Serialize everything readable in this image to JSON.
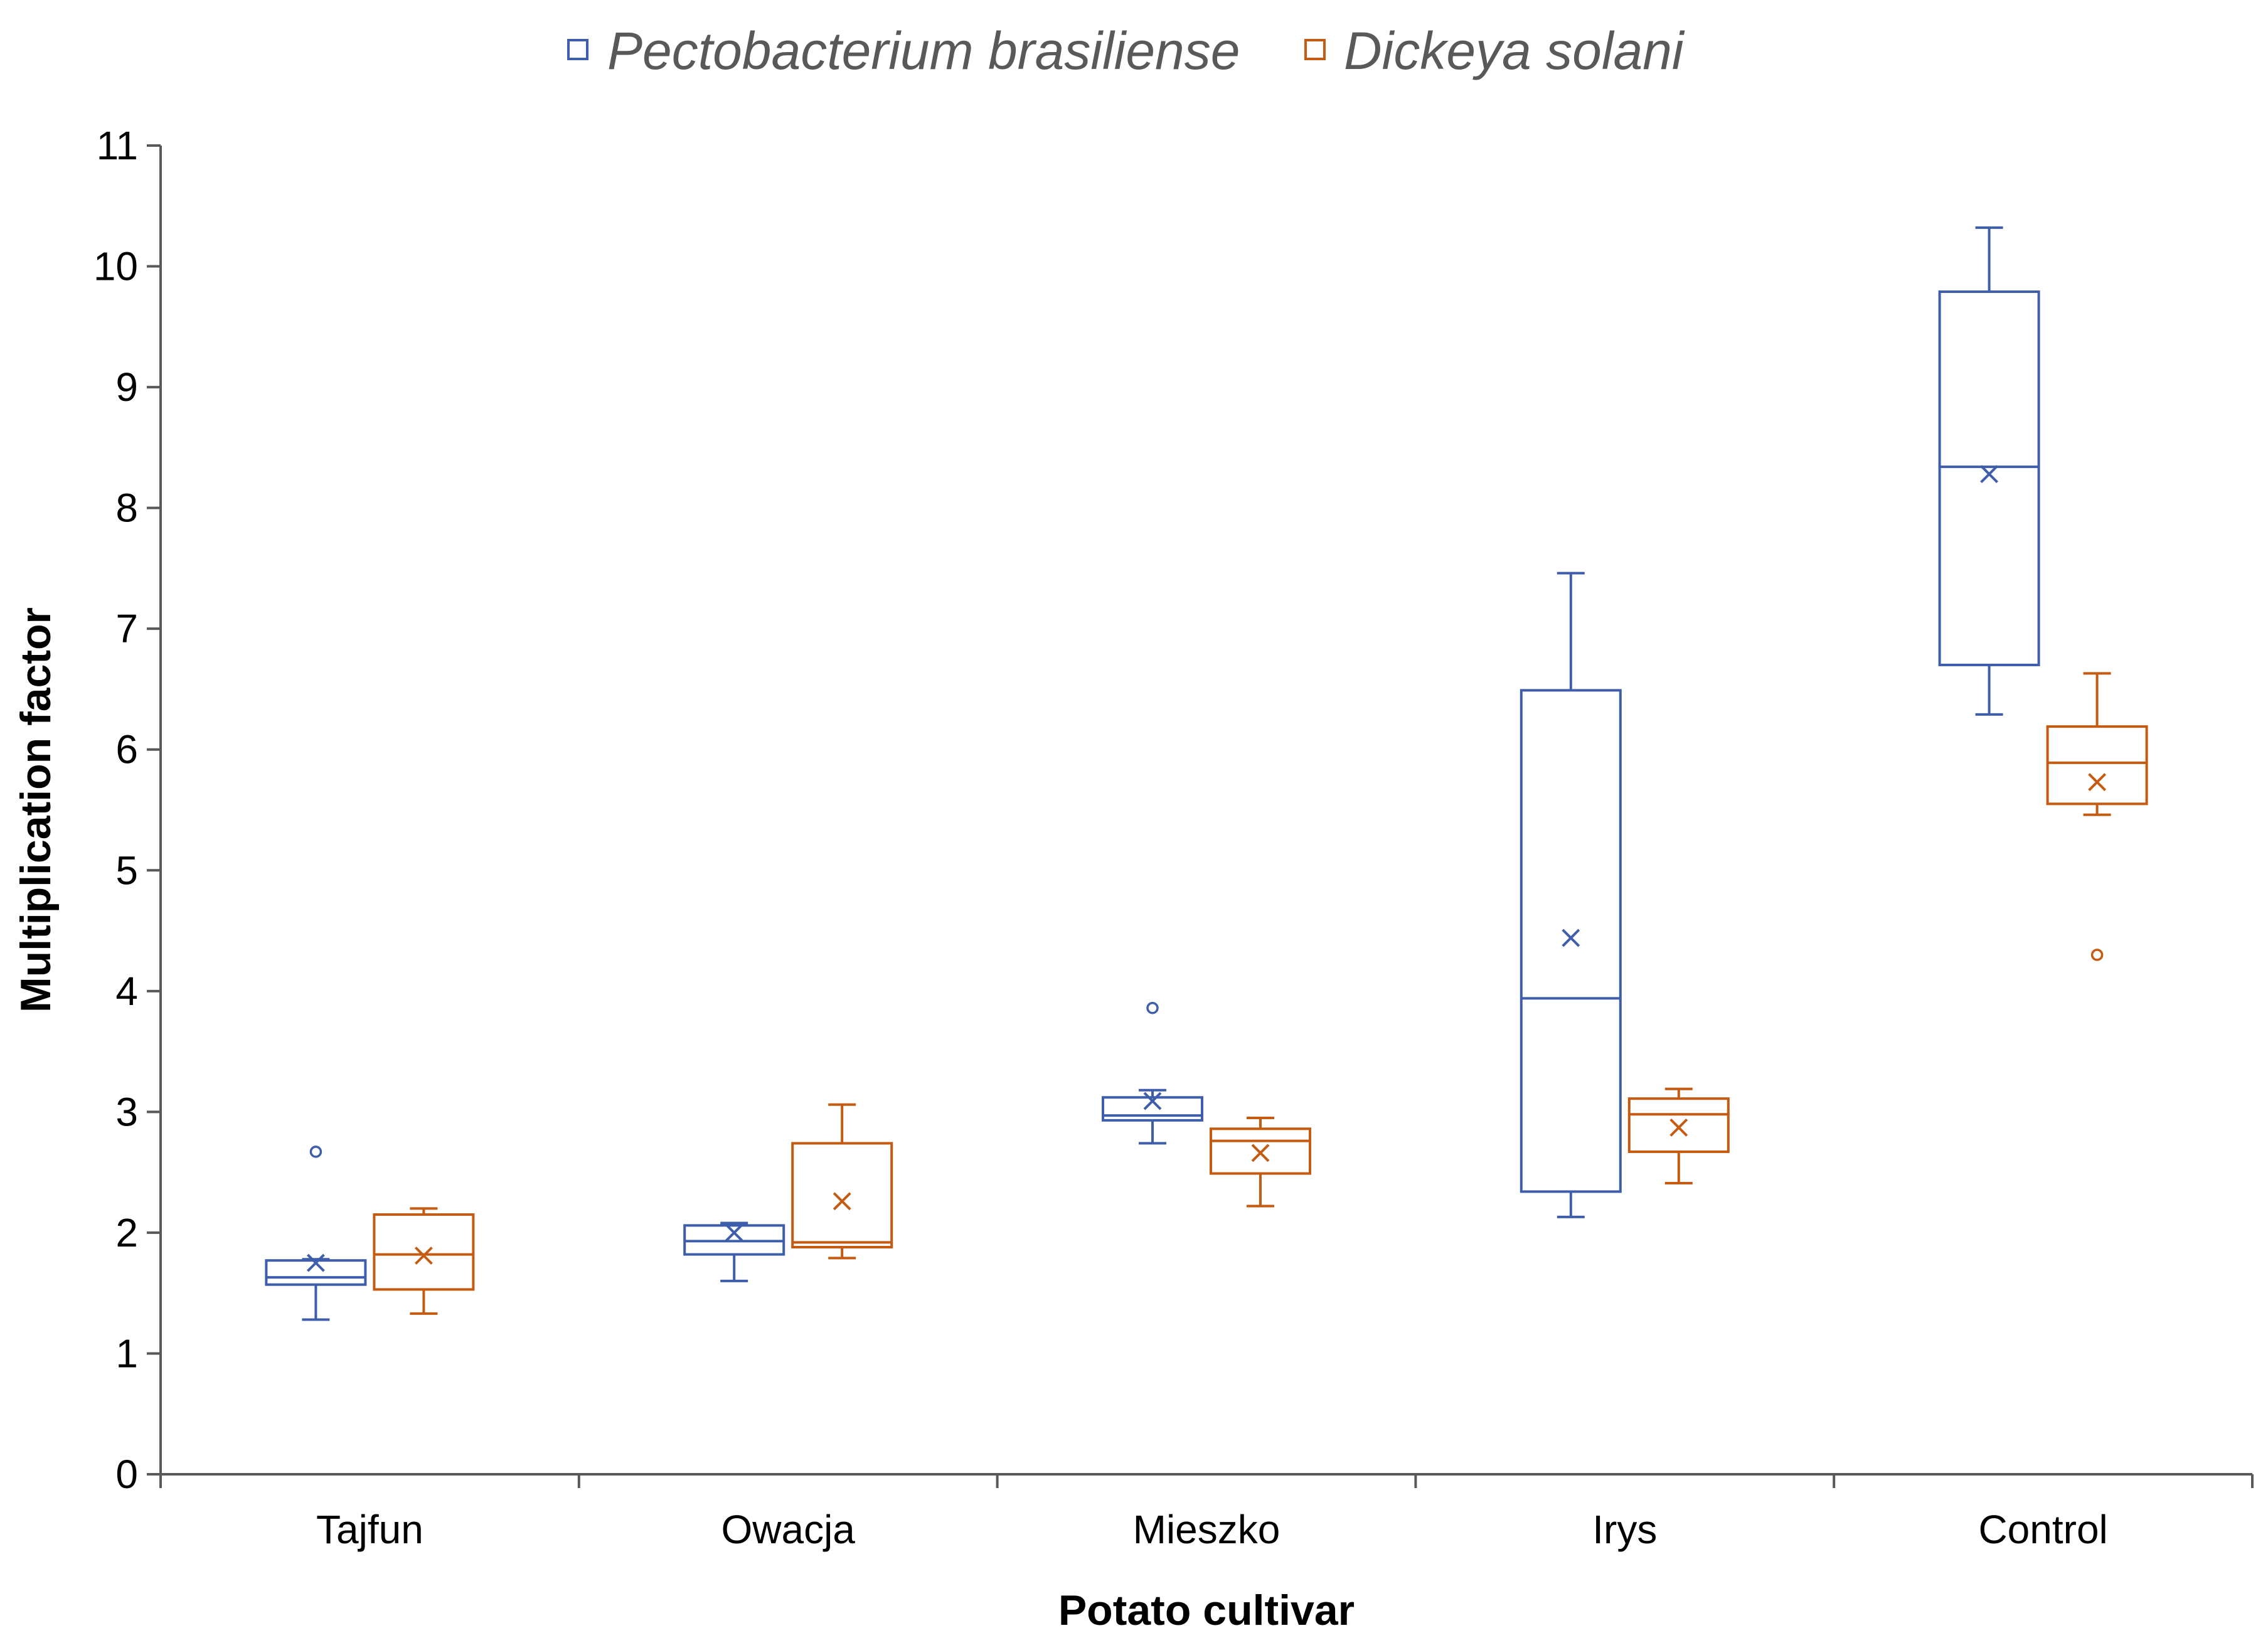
{
  "chart_data": {
    "type": "box",
    "title": "",
    "xlabel": "Potato cultivar",
    "ylabel": "Multiplication factor",
    "ylim": [
      0,
      11
    ],
    "yticks": [
      0,
      1,
      2,
      3,
      4,
      5,
      6,
      7,
      8,
      9,
      10,
      11
    ],
    "categories": [
      "Tajfun",
      "Owacja",
      "Mieszko",
      "Irys",
      "Control"
    ],
    "legend_position": "top-center",
    "series": [
      {
        "name": "Pectobacterium brasiliense",
        "color": "#3E5DAA",
        "boxes": [
          {
            "category": "Tajfun",
            "whisker_low": 1.28,
            "q1": 1.57,
            "median": 1.63,
            "q3": 1.77,
            "whisker_high": 1.78,
            "mean": 1.75,
            "outliers": [
              2.67
            ]
          },
          {
            "category": "Owacja",
            "whisker_low": 1.6,
            "q1": 1.82,
            "median": 1.93,
            "q3": 2.06,
            "whisker_high": 2.08,
            "mean": 2.0,
            "outliers": []
          },
          {
            "category": "Mieszko",
            "whisker_low": 2.74,
            "q1": 2.93,
            "median": 2.97,
            "q3": 3.12,
            "whisker_high": 3.18,
            "mean": 3.09,
            "outliers": [
              3.86
            ]
          },
          {
            "category": "Irys",
            "whisker_low": 2.13,
            "q1": 2.34,
            "median": 3.94,
            "q3": 6.49,
            "whisker_high": 7.46,
            "mean": 4.44,
            "outliers": []
          },
          {
            "category": "Control",
            "whisker_low": 6.29,
            "q1": 6.7,
            "median": 8.34,
            "q3": 9.79,
            "whisker_high": 10.32,
            "mean": 8.28,
            "outliers": []
          }
        ]
      },
      {
        "name": "Dickeya solani",
        "color": "#C55A11",
        "boxes": [
          {
            "category": "Tajfun",
            "whisker_low": 1.33,
            "q1": 1.53,
            "median": 1.82,
            "q3": 2.15,
            "whisker_high": 2.2,
            "mean": 1.81,
            "outliers": []
          },
          {
            "category": "Owacja",
            "whisker_low": 1.79,
            "q1": 1.88,
            "median": 1.92,
            "q3": 2.74,
            "whisker_high": 3.06,
            "mean": 2.26,
            "outliers": []
          },
          {
            "category": "Mieszko",
            "whisker_low": 2.22,
            "q1": 2.49,
            "median": 2.76,
            "q3": 2.86,
            "whisker_high": 2.95,
            "mean": 2.66,
            "outliers": []
          },
          {
            "category": "Irys",
            "whisker_low": 2.41,
            "q1": 2.67,
            "median": 2.98,
            "q3": 3.11,
            "whisker_high": 3.19,
            "mean": 2.87,
            "outliers": []
          },
          {
            "category": "Control",
            "whisker_low": 5.46,
            "q1": 5.55,
            "median": 5.89,
            "q3": 6.19,
            "whisker_high": 6.63,
            "mean": 5.73,
            "outliers": [
              4.3
            ]
          }
        ]
      }
    ]
  }
}
